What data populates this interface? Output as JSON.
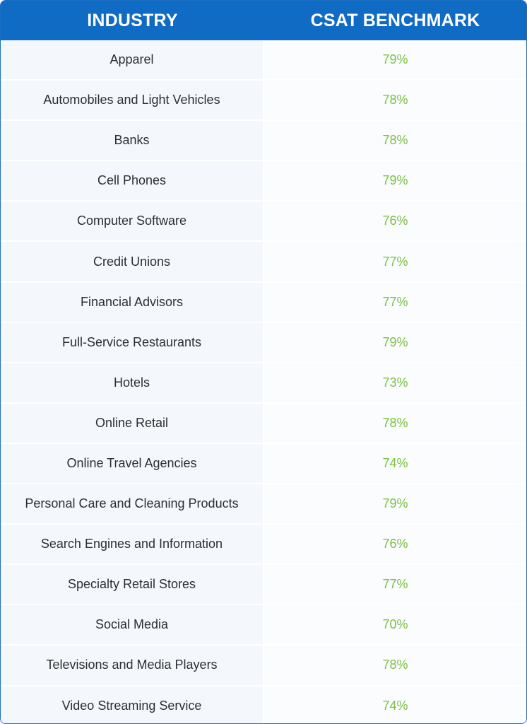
{
  "chart_data": {
    "type": "table",
    "columns": [
      "INDUSTRY",
      "CSAT BENCHMARK"
    ],
    "rows": [
      {
        "industry": "Apparel",
        "value": "79%"
      },
      {
        "industry": "Automobiles and Light Vehicles",
        "value": "78%"
      },
      {
        "industry": "Banks",
        "value": "78%"
      },
      {
        "industry": "Cell Phones",
        "value": "79%"
      },
      {
        "industry": "Computer Software",
        "value": "76%"
      },
      {
        "industry": "Credit Unions",
        "value": "77%"
      },
      {
        "industry": "Financial Advisors",
        "value": "77%"
      },
      {
        "industry": "Full-Service Restaurants",
        "value": "79%"
      },
      {
        "industry": "Hotels",
        "value": "73%"
      },
      {
        "industry": "Online Retail",
        "value": "78%"
      },
      {
        "industry": "Online Travel Agencies",
        "value": "74%"
      },
      {
        "industry": "Personal Care and Cleaning Products",
        "value": "79%"
      },
      {
        "industry": "Search Engines and Information",
        "value": "76%"
      },
      {
        "industry": "Specialty Retail Stores",
        "value": "77%"
      },
      {
        "industry": "Social Media",
        "value": "70%"
      },
      {
        "industry": "Televisions and Media Players",
        "value": "78%"
      },
      {
        "industry": "Video Streaming Service",
        "value": "74%"
      }
    ],
    "colors": {
      "header_bg": "#0f6bc4",
      "header_text": "#ffffff",
      "value_text": "#79c142",
      "industry_text": "#2a2f36",
      "row_bg": "#f4f8fc"
    }
  }
}
